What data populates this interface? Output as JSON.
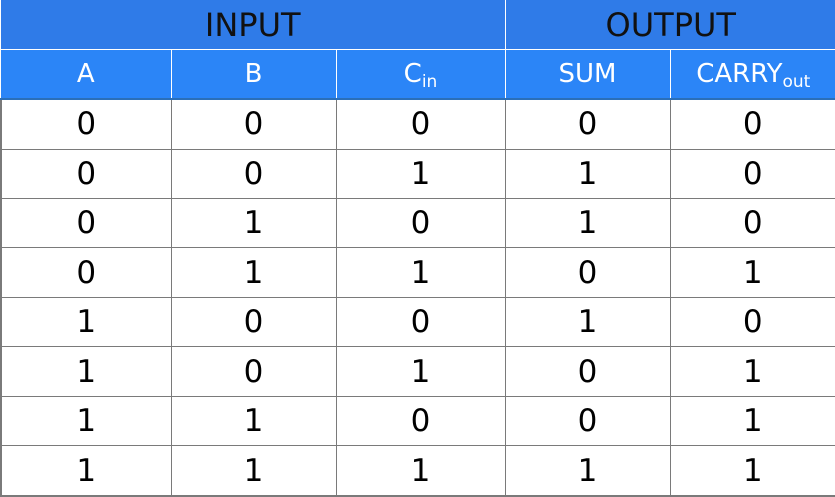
{
  "groups": {
    "input": "INPUT",
    "output": "OUTPUT"
  },
  "columns": {
    "a": "A",
    "b": "B",
    "cin": {
      "main": "C",
      "sub": "in"
    },
    "sum": "SUM",
    "carry": {
      "main": "CARRY",
      "sub": "out"
    }
  },
  "rows": [
    {
      "a": "0",
      "b": "0",
      "cin": "0",
      "sum": "0",
      "carry": "0"
    },
    {
      "a": "0",
      "b": "0",
      "cin": "1",
      "sum": "1",
      "carry": "0"
    },
    {
      "a": "0",
      "b": "1",
      "cin": "0",
      "sum": "1",
      "carry": "0"
    },
    {
      "a": "0",
      "b": "1",
      "cin": "1",
      "sum": "0",
      "carry": "1"
    },
    {
      "a": "1",
      "b": "0",
      "cin": "0",
      "sum": "1",
      "carry": "0"
    },
    {
      "a": "1",
      "b": "0",
      "cin": "1",
      "sum": "0",
      "carry": "1"
    },
    {
      "a": "1",
      "b": "1",
      "cin": "0",
      "sum": "0",
      "carry": "1"
    },
    {
      "a": "1",
      "b": "1",
      "cin": "1",
      "sum": "1",
      "carry": "1"
    }
  ],
  "colors": {
    "group_header_bg": "#2f7be8",
    "column_header_bg": "#2b85f7",
    "grid_line": "#7a7a7a"
  }
}
